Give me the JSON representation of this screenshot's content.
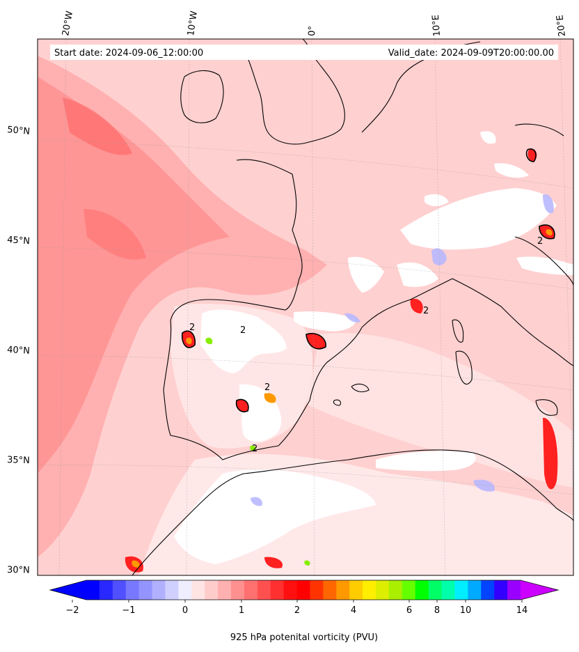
{
  "header": {
    "start_date": "Start date: 2024-09-06_12:00:00",
    "valid_date": "Valid_date: 2024-09-09T20:00:00.00"
  },
  "lon_labels": [
    "20°W",
    "10°W",
    "0°",
    "10°E",
    "20°E"
  ],
  "lat_labels": [
    "50°N",
    "45°N",
    "40°N",
    "35°N",
    "30°N"
  ],
  "colorbar": {
    "label": "925 hPa potenital vorticity (PVU)",
    "tick_labels": [
      "−2",
      "−1",
      "0",
      "1",
      "2",
      "4",
      "6",
      "8",
      "10",
      "14"
    ],
    "colors": [
      "#0000ff",
      "#2828ff",
      "#5050ff",
      "#7878ff",
      "#9494ff",
      "#b0b0ff",
      "#d0d0ff",
      "#eeeeff",
      "#ffe4e4",
      "#ffcccc",
      "#ffb0b0",
      "#ff9090",
      "#ff7070",
      "#ff5050",
      "#ff3030",
      "#ff1010",
      "#ff0000",
      "#ff3300",
      "#ff6600",
      "#ff9900",
      "#ffcc00",
      "#ffee00",
      "#ddee00",
      "#aaee00",
      "#66ff00",
      "#00ff00",
      "#00ff66",
      "#00ffaa",
      "#00eeff",
      "#00aaff",
      "#0044ff",
      "#3300ff",
      "#9900ff"
    ],
    "under_color": "#0000ff",
    "over_color": "#cc00ff"
  },
  "map": {
    "background_color": "#ffcfcf",
    "contour_value": "2"
  }
}
